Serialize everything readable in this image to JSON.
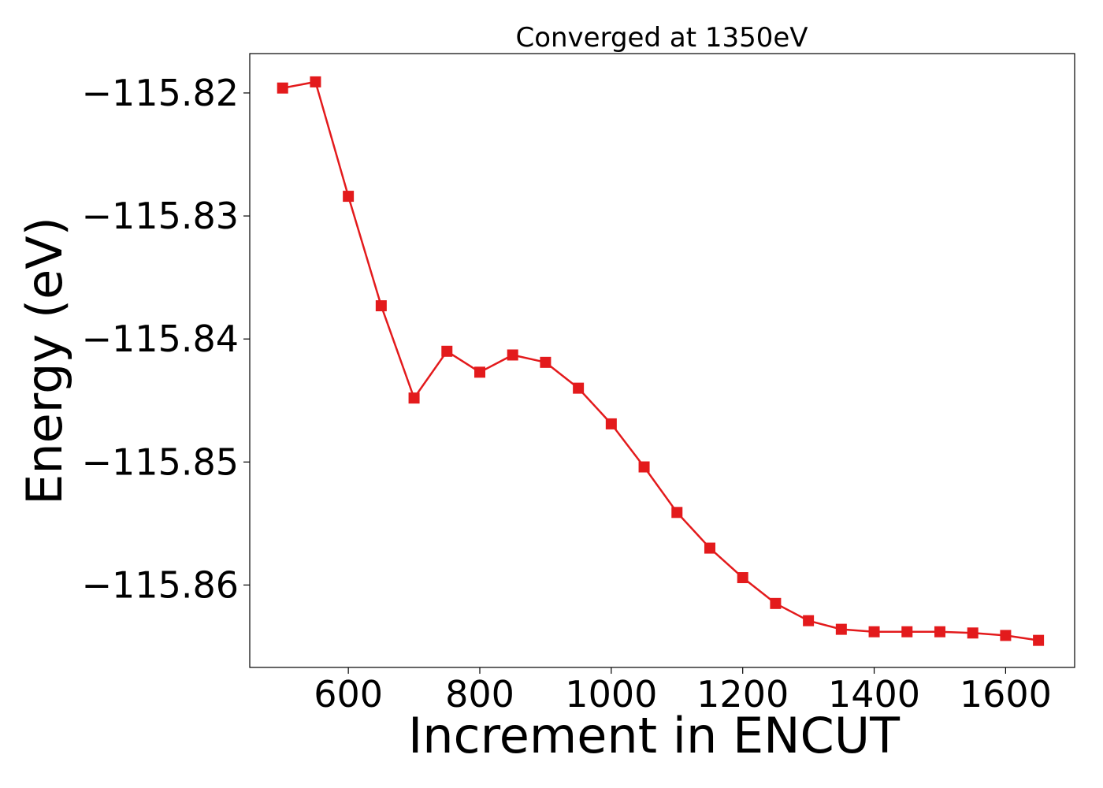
{
  "chart_data": {
    "type": "line",
    "title": "Converged at 1350eV",
    "xlabel": "Increment in ENCUT",
    "ylabel": "Energy (eV)",
    "xlim": [
      450,
      1705
    ],
    "ylim": [
      -115.8667,
      -115.8168
    ],
    "xticks": [
      600,
      800,
      1000,
      1200,
      1400,
      1600
    ],
    "xtick_labels": [
      "600",
      "800",
      "1000",
      "1200",
      "1400",
      "1600"
    ],
    "yticks": [
      -115.82,
      -115.83,
      -115.84,
      -115.85,
      -115.86
    ],
    "ytick_labels": [
      "−115.82",
      "−115.83",
      "−115.84",
      "−115.85",
      "−115.86"
    ],
    "grid": false,
    "series_color": "#e31a1c",
    "marker": "square",
    "x": [
      500,
      550,
      600,
      650,
      700,
      750,
      800,
      850,
      900,
      950,
      1000,
      1050,
      1100,
      1150,
      1200,
      1250,
      1300,
      1350,
      1400,
      1450,
      1500,
      1550,
      1600,
      1650
    ],
    "y": [
      -115.8196,
      -115.8191,
      -115.8284,
      -115.8373,
      -115.8448,
      -115.841,
      -115.8427,
      -115.8413,
      -115.8419,
      -115.844,
      -115.8469,
      -115.8504,
      -115.8541,
      -115.857,
      -115.8594,
      -115.8615,
      -115.8629,
      -115.8636,
      -115.8638,
      -115.8638,
      -115.8638,
      -115.8639,
      -115.8641,
      -115.8645
    ]
  }
}
